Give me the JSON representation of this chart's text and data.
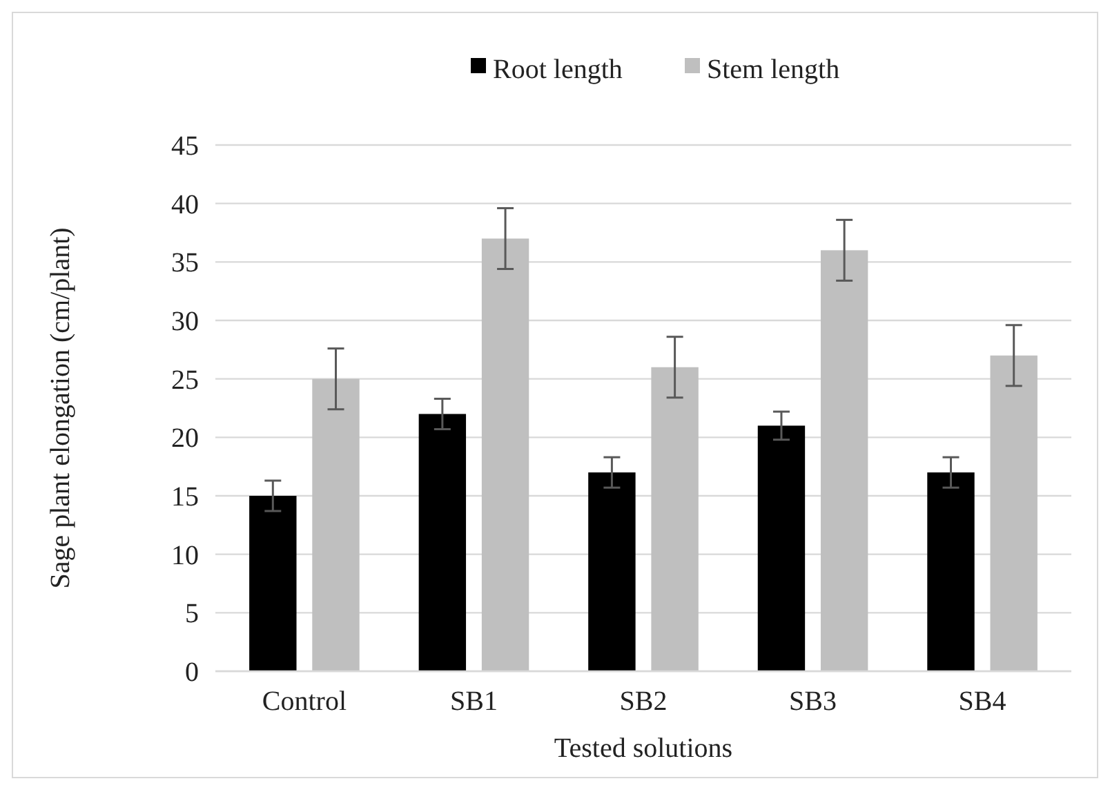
{
  "chart_data": {
    "type": "bar",
    "xlabel": "Tested solutions",
    "ylabel": "Sage plant elongation (cm/plant)",
    "categories": [
      "Control",
      "SB1",
      "SB2",
      "SB3",
      "SB4"
    ],
    "series": [
      {
        "name": "Root length",
        "color": "#000000",
        "values": [
          15,
          22,
          17,
          21,
          17
        ],
        "errors": [
          1.3,
          1.3,
          1.3,
          1.2,
          1.3
        ]
      },
      {
        "name": "Stem length",
        "color": "#bfbfbf",
        "values": [
          25,
          37,
          26,
          36,
          27
        ],
        "errors": [
          2.6,
          2.6,
          2.6,
          2.6,
          2.6
        ]
      }
    ],
    "ylim": [
      0,
      45
    ],
    "yticks": [
      0,
      5,
      10,
      15,
      20,
      25,
      30,
      35,
      40,
      45
    ],
    "grid": "y",
    "legend": "top"
  }
}
